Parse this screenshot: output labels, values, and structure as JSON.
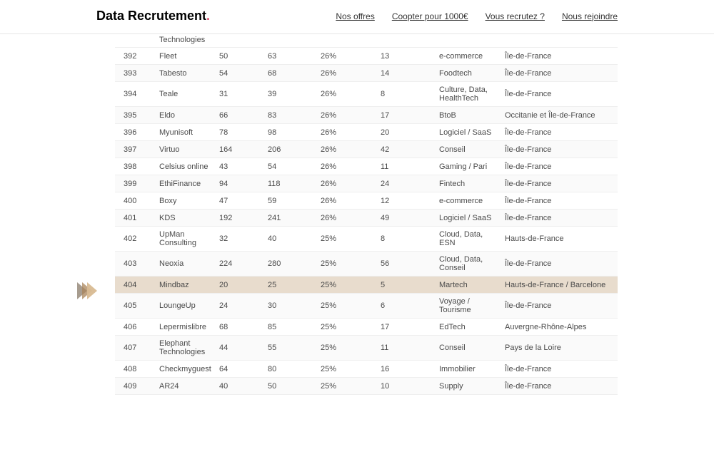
{
  "header": {
    "logo_main": "Data Recrutement",
    "logo_dot": ".",
    "nav": [
      {
        "label": "Nos offres"
      },
      {
        "label": "Coopter pour 1000€"
      },
      {
        "label": "Vous recrutez ?"
      },
      {
        "label": "Nous rejoindre"
      }
    ]
  },
  "table": {
    "highlight_index": 13,
    "colors": {
      "row_border": "#eeeeee",
      "alt_bg": "#fafafa",
      "highlight_bg": "#e8dccd",
      "text": "#4a4a4a",
      "arrow_fill": "#c9a36b"
    },
    "rows": [
      {
        "rank": "",
        "name": "Technologies",
        "a": "",
        "b": "",
        "pct": "",
        "c": "",
        "sector": "",
        "region": "",
        "partial": true
      },
      {
        "rank": "392",
        "name": "Fleet",
        "a": "50",
        "b": "63",
        "pct": "26%",
        "c": "13",
        "sector": "e-commerce",
        "region": "Île-de-France"
      },
      {
        "rank": "393",
        "name": "Tabesto",
        "a": "54",
        "b": "68",
        "pct": "26%",
        "c": "14",
        "sector": "Foodtech",
        "region": "Île-de-France"
      },
      {
        "rank": "394",
        "name": "Teale",
        "a": "31",
        "b": "39",
        "pct": "26%",
        "c": "8",
        "sector": "Culture, Data, HealthTech",
        "region": "Île-de-France"
      },
      {
        "rank": "395",
        "name": "Eldo",
        "a": "66",
        "b": "83",
        "pct": "26%",
        "c": "17",
        "sector": "BtoB",
        "region": "Occitanie et Île-de-France"
      },
      {
        "rank": "396",
        "name": "Myunisoft",
        "a": "78",
        "b": "98",
        "pct": "26%",
        "c": "20",
        "sector": "Logiciel / SaaS",
        "region": "Île-de-France"
      },
      {
        "rank": "397",
        "name": "Virtuo",
        "a": "164",
        "b": "206",
        "pct": "26%",
        "c": "42",
        "sector": "Conseil",
        "region": "Île-de-France"
      },
      {
        "rank": "398",
        "name": "Celsius online",
        "a": "43",
        "b": "54",
        "pct": "26%",
        "c": "11",
        "sector": "Gaming / Pari",
        "region": "Île-de-France"
      },
      {
        "rank": "399",
        "name": "EthiFinance",
        "a": "94",
        "b": "118",
        "pct": "26%",
        "c": "24",
        "sector": "Fintech",
        "region": "Île-de-France"
      },
      {
        "rank": "400",
        "name": "Boxy",
        "a": "47",
        "b": "59",
        "pct": "26%",
        "c": "12",
        "sector": "e-commerce",
        "region": "Île-de-France"
      },
      {
        "rank": "401",
        "name": "KDS",
        "a": "192",
        "b": "241",
        "pct": "26%",
        "c": "49",
        "sector": "Logiciel / SaaS",
        "region": "Île-de-France"
      },
      {
        "rank": "402",
        "name": "UpMan Consulting",
        "a": "32",
        "b": "40",
        "pct": "25%",
        "c": "8",
        "sector": "Cloud, Data, ESN",
        "region": "Hauts-de-France"
      },
      {
        "rank": "403",
        "name": "Neoxia",
        "a": "224",
        "b": "280",
        "pct": "25%",
        "c": "56",
        "sector": "Cloud, Data, Conseil",
        "region": "Île-de-France"
      },
      {
        "rank": "404",
        "name": "Mindbaz",
        "a": "20",
        "b": "25",
        "pct": "25%",
        "c": "5",
        "sector": "Martech",
        "region": "Hauts-de-France / Barcelone"
      },
      {
        "rank": "405",
        "name": "LoungeUp",
        "a": "24",
        "b": "30",
        "pct": "25%",
        "c": "6",
        "sector": "Voyage / Tourisme",
        "region": "Île-de-France"
      },
      {
        "rank": "406",
        "name": "Lepermislibre",
        "a": "68",
        "b": "85",
        "pct": "25%",
        "c": "17",
        "sector": "EdTech",
        "region": "Auvergne-Rhône-Alpes"
      },
      {
        "rank": "407",
        "name": "Elephant Technologies",
        "a": "44",
        "b": "55",
        "pct": "25%",
        "c": "11",
        "sector": "Conseil",
        "region": "Pays de la Loire"
      },
      {
        "rank": "408",
        "name": "Checkmyguest",
        "a": "64",
        "b": "80",
        "pct": "25%",
        "c": "16",
        "sector": "Immobilier",
        "region": "Île-de-France"
      },
      {
        "rank": "409",
        "name": "AR24",
        "a": "40",
        "b": "50",
        "pct": "25%",
        "c": "10",
        "sector": "Supply",
        "region": "Île-de-France"
      }
    ]
  }
}
